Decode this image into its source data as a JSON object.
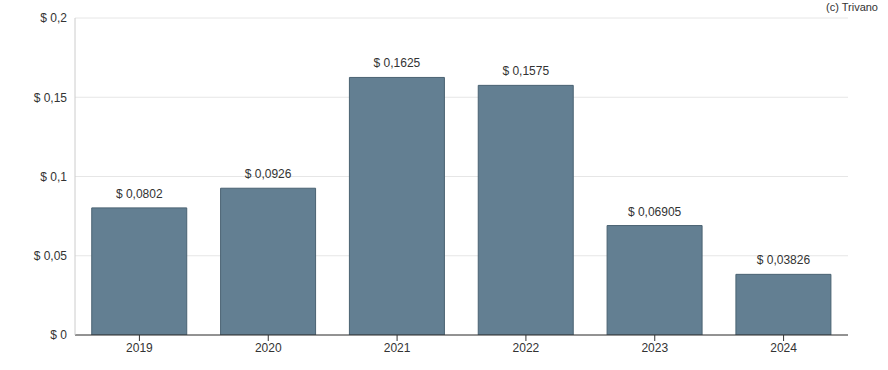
{
  "chart_data": {
    "type": "bar",
    "categories": [
      "2019",
      "2020",
      "2021",
      "2022",
      "2023",
      "2024"
    ],
    "values": [
      0.0802,
      0.0926,
      0.1625,
      0.1575,
      0.06905,
      0.03826
    ],
    "value_labels": [
      "$ 0,0802",
      "$ 0,0926",
      "$ 0,1625",
      "$ 0,1575",
      "$ 0,06905",
      "$ 0,03826"
    ],
    "color": "#637f92",
    "ylim": [
      0,
      0.2
    ],
    "yticks": [
      {
        "value": 0,
        "label": "$ 0"
      },
      {
        "value": 0.05,
        "label": "$ 0,05"
      },
      {
        "value": 0.1,
        "label": "$ 0,1"
      },
      {
        "value": 0.15,
        "label": "$ 0,15"
      },
      {
        "value": 0.2,
        "label": "$ 0,2"
      }
    ],
    "grid": true,
    "data_labels": true,
    "annotations": [
      "(c) Trivano"
    ]
  }
}
